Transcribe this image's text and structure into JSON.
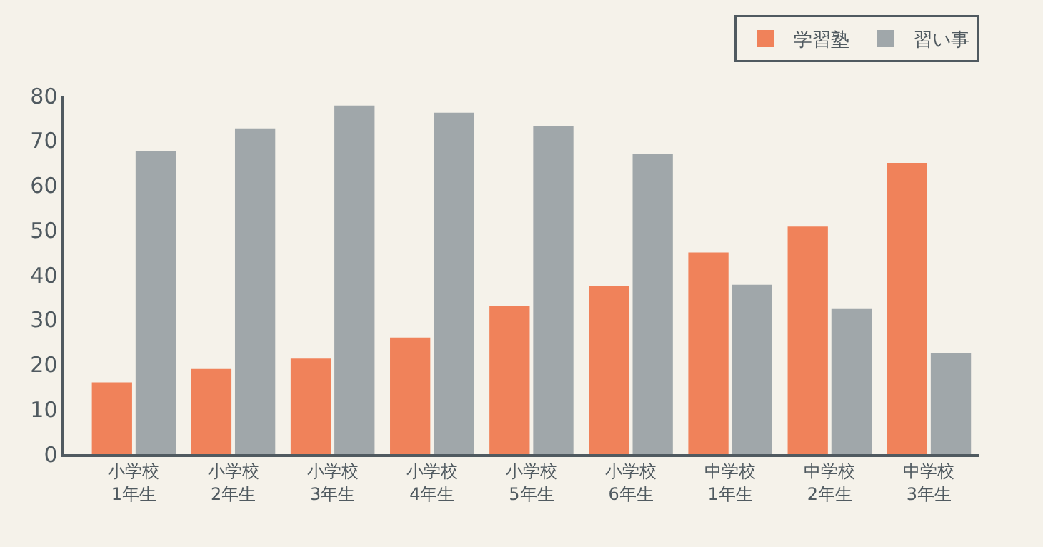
{
  "chart_data": {
    "type": "bar",
    "categories": [
      "小学校\n1年生",
      "小学校\n2年生",
      "小学校\n3年生",
      "小学校\n4年生",
      "小学校\n5年生",
      "小学校\n6年生",
      "中学校\n1年生",
      "中学校\n2年生",
      "中学校\n3年生"
    ],
    "series": [
      {
        "name": "学習塾",
        "color": "#f0825a",
        "values": [
          16,
          19,
          21.3,
          26,
          33,
          37.5,
          45,
          50.8,
          65
        ]
      },
      {
        "name": "習い事",
        "color": "#a0a7aa",
        "values": [
          67.6,
          72.7,
          77.8,
          76.2,
          73.3,
          67,
          37.8,
          32.4,
          22.5
        ]
      }
    ],
    "ylim": [
      0,
      80
    ],
    "yticks": [
      0,
      10,
      20,
      30,
      40,
      50,
      60,
      70,
      80
    ],
    "grid": false,
    "legend": "top right"
  }
}
